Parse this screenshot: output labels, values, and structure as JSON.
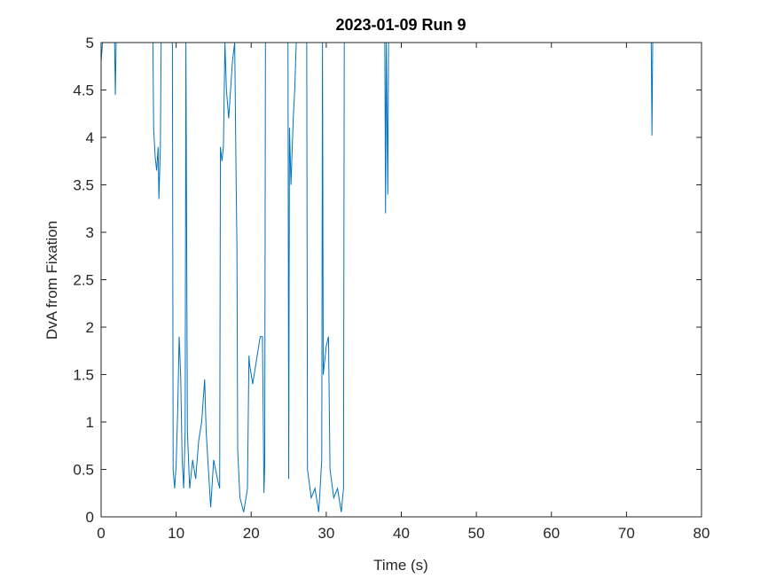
{
  "chart_data": {
    "type": "line",
    "title": "2023-01-09 Run 9",
    "x_label": "Time (s)",
    "y_label": "DvA from Fixation",
    "xlim": [
      0,
      80
    ],
    "ylim": [
      0,
      5
    ],
    "xticks": [
      0,
      10,
      20,
      30,
      40,
      50,
      60,
      70,
      80
    ],
    "yticks": [
      0,
      0.5,
      1,
      1.5,
      2,
      2.5,
      3,
      3.5,
      4,
      4.5,
      5
    ],
    "grid": false,
    "series": [
      {
        "name": "DvA",
        "color": "#0072bd",
        "x": [
          0,
          0.2,
          0.4,
          1.8,
          1.9,
          2.0,
          6.9,
          7.0,
          7.2,
          7.4,
          7.6,
          7.7,
          7.9,
          8.0,
          9.5,
          9.6,
          9.8,
          10.0,
          10.2,
          10.4,
          10.6,
          10.8,
          11.0,
          11.2,
          11.3,
          11.5,
          11.8,
          12.2,
          12.6,
          13.0,
          13.4,
          13.8,
          14.0,
          14.3,
          14.6,
          15.0,
          15.5,
          15.8,
          15.9,
          16.1,
          16.3,
          16.5,
          16.7,
          17.0,
          17.5,
          17.8,
          18.0,
          18.1,
          18.2,
          18.5,
          19.0,
          19.5,
          19.7,
          19.8,
          20.2,
          20.8,
          21.2,
          21.5,
          21.7,
          21.8,
          21.9,
          24.9,
          25.0,
          25.1,
          25.3,
          25.6,
          25.8,
          26.0,
          27.4,
          27.5,
          28.0,
          28.5,
          29.0,
          29.4,
          29.5,
          29.6,
          30.0,
          30.3,
          30.5,
          31.0,
          31.5,
          32.0,
          32.3,
          32.4,
          37.8,
          37.9,
          38.0,
          38.2,
          38.3,
          73.3,
          73.4,
          73.5,
          80
        ],
        "values": [
          4.8,
          5,
          5,
          5,
          4.45,
          5,
          5,
          4.1,
          3.8,
          3.65,
          3.9,
          3.35,
          3.9,
          5,
          5,
          0.5,
          0.3,
          0.55,
          1.1,
          1.9,
          1.5,
          0.6,
          0.3,
          0.9,
          5,
          0.9,
          0.3,
          0.6,
          0.4,
          0.8,
          1.0,
          1.45,
          0.9,
          0.5,
          0.1,
          0.6,
          0.4,
          0.3,
          3.9,
          3.75,
          3.9,
          5,
          4.5,
          4.2,
          4.8,
          5,
          3.5,
          2.85,
          0.7,
          0.2,
          0.05,
          0.3,
          1.7,
          1.6,
          1.4,
          1.7,
          1.9,
          1.9,
          0.25,
          0.55,
          5,
          5,
          0.4,
          4.1,
          3.5,
          4.2,
          4.5,
          5,
          5,
          0.5,
          0.2,
          0.3,
          0.05,
          0.6,
          5,
          1.5,
          1.8,
          1.9,
          0.5,
          0.2,
          0.3,
          0.05,
          0.3,
          5,
          5,
          3.2,
          5,
          3.4,
          5,
          5,
          4.02,
          5,
          5
        ]
      }
    ]
  }
}
